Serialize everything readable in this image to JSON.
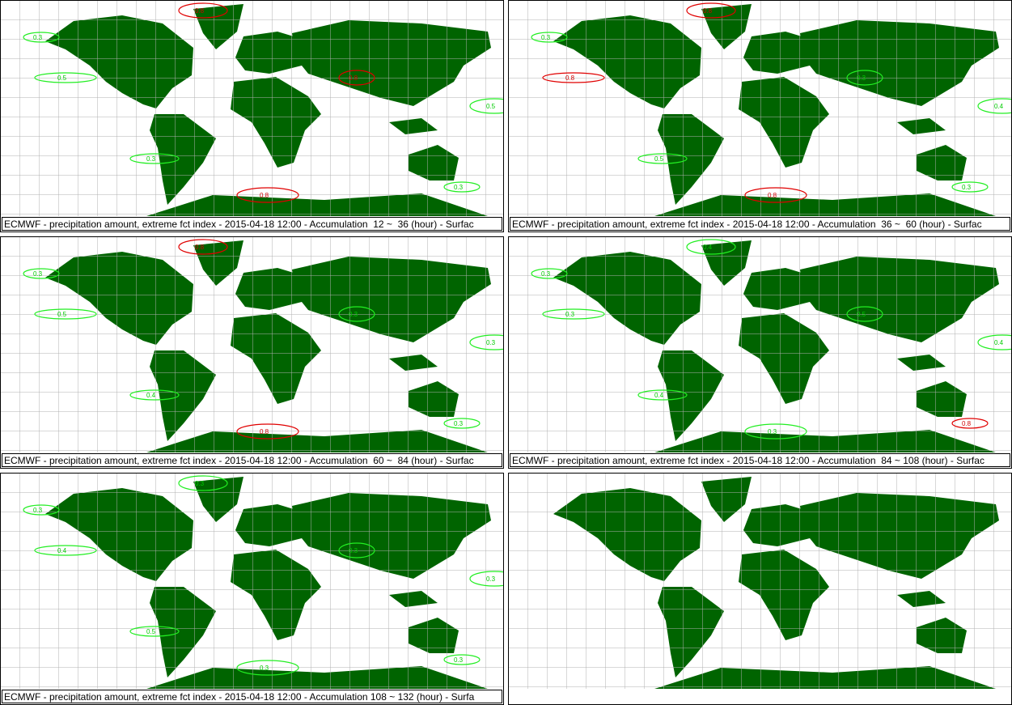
{
  "panels": [
    {
      "caption": "ECMWF - precipitation amount, extreme fct index - 2015-04-18 12:00 - Accumulation  12 ~  36 (hour) - Surfac",
      "contour_labels": [
        "0.3",
        "0.8",
        "0.5",
        "0.8",
        "0.3",
        "0.8",
        "0.3",
        "0.5"
      ]
    },
    {
      "caption": "ECMWF - precipitation amount, extreme fct index - 2015-04-18 12:00 - Accumulation  36 ~  60 (hour) - Surfac",
      "contour_labels": [
        "0.3",
        "0.8",
        "0.8",
        "0.3",
        "0.5",
        "0.8",
        "0.3",
        "0.4"
      ]
    },
    {
      "caption": "ECMWF - precipitation amount, extreme fct index - 2015-04-18 12:00 - Accumulation  60 ~  84 (hour) - Surfac",
      "contour_labels": [
        "0.3",
        "0.8",
        "0.5",
        "0.3",
        "0.4",
        "0.8",
        "0.3",
        "0.3"
      ]
    },
    {
      "caption": "ECMWF - precipitation amount, extreme fct index - 2015-04-18 12:00 - Accumulation  84 ~ 108 (hour) - Surfac",
      "contour_labels": [
        "0.3",
        "0.4",
        "0.3",
        "0.5",
        "0.4",
        "0.3",
        "0.8",
        "0.4"
      ]
    },
    {
      "caption": "ECMWF - precipitation amount, extreme fct index - 2015-04-18 12:00 - Accumulation 108 ~ 132 (hour) - Surfa",
      "contour_labels": [
        "0.3",
        "0.3",
        "0.4",
        "0.3",
        "0.5",
        "0.3",
        "0.3",
        "0.3"
      ]
    },
    {}
  ]
}
